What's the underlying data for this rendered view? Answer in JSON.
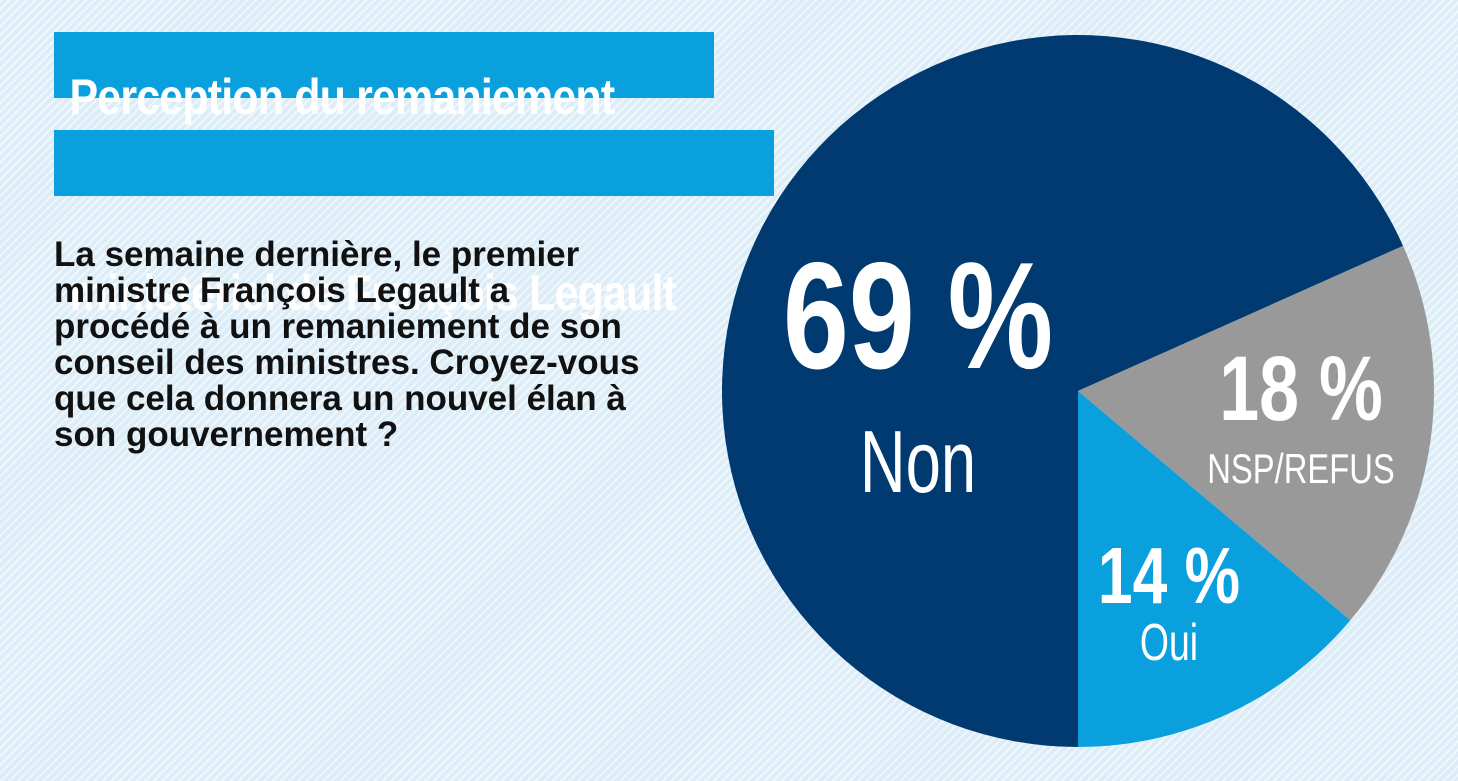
{
  "title": {
    "line1": "Perception du remaniement",
    "line2": "ministériel de François Legault"
  },
  "question": "La semaine dernière, le premier ministre François Legault a procédé à un remaniement de son conseil des ministres. Croyez-vous que cela donnera un nouvel élan à son gouvernement ?",
  "colors": {
    "title_bg": "#0aa0de",
    "non": "#003a70",
    "nsp": "#999999",
    "oui": "#0aa0de"
  },
  "chart_data": {
    "type": "pie",
    "unit": "%",
    "slices": [
      {
        "label": "Non",
        "value": 69,
        "value_text": "69 %",
        "color": "#003a70"
      },
      {
        "label": "NSP/REFUS",
        "value": 18,
        "value_text": "18 %",
        "color": "#999999"
      },
      {
        "label": "Oui",
        "value": 14,
        "value_text": "14 %",
        "color": "#0aa0de"
      }
    ]
  }
}
